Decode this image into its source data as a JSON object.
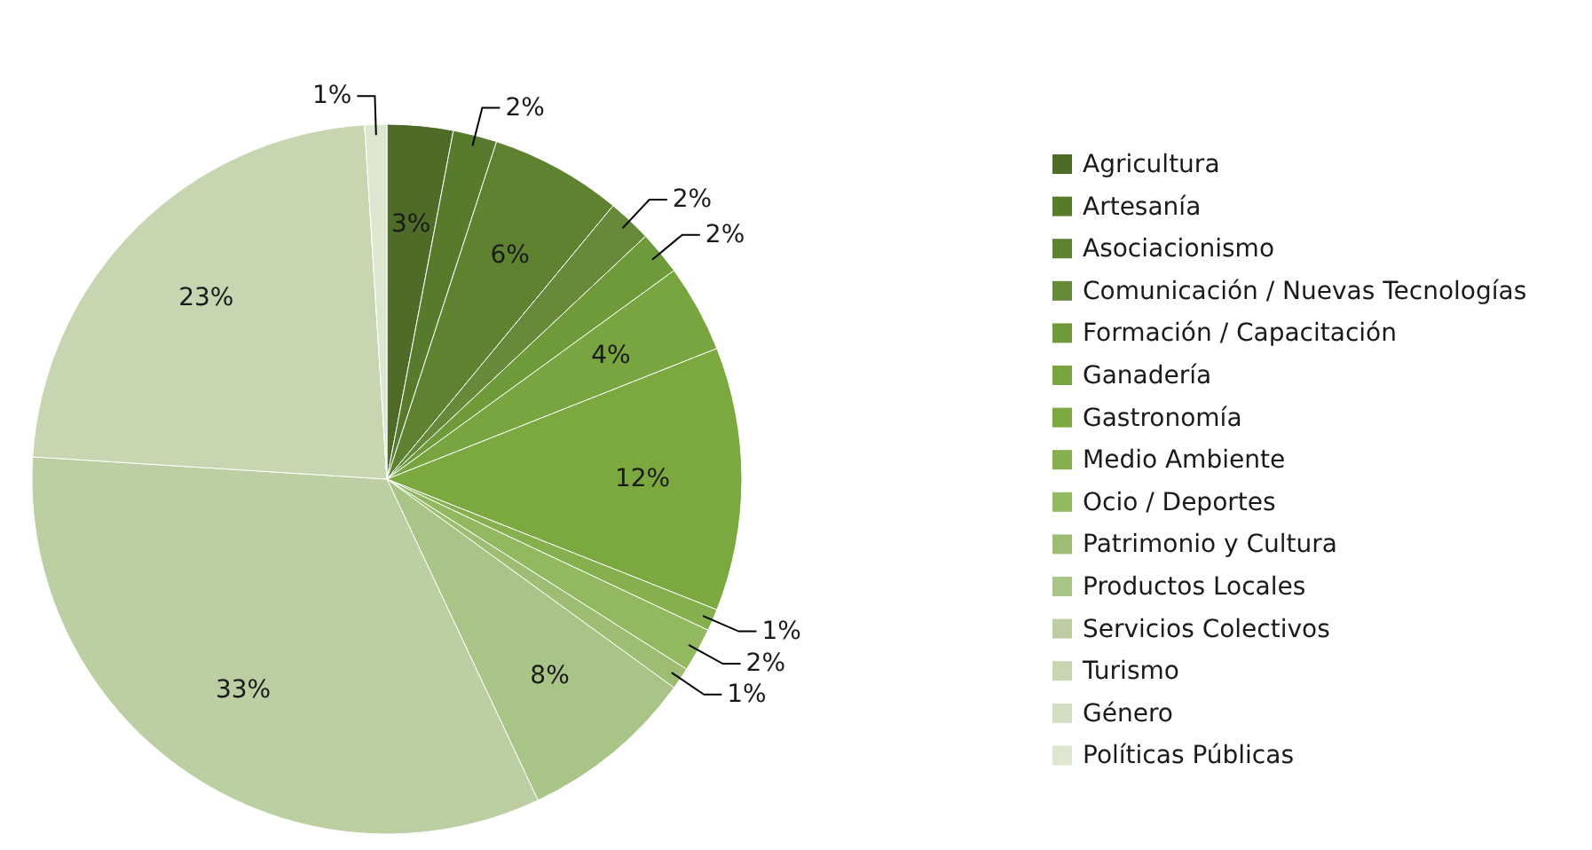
{
  "chart_data": {
    "type": "pie",
    "categories": [
      "Agricultura",
      "Artesanía",
      "Asociacionismo",
      "Comunicación / Nuevas Tecnologías",
      "Formación / Capacitación",
      "Ganadería",
      "Gastronomía",
      "Medio Ambiente",
      "Ocio / Deportes",
      "Patrimonio y Cultura",
      "Productos Locales",
      "Servicios Colectivos",
      "Turismo",
      "Género",
      "Políticas Públicas"
    ],
    "values": [
      3,
      2,
      6,
      2,
      2,
      4,
      12,
      1,
      2,
      1,
      8,
      33,
      23,
      0,
      1
    ],
    "value_labels": [
      "3%",
      "2%",
      "6%",
      "2%",
      "2%",
      "4%",
      "12%",
      "1%",
      "2%",
      "1%",
      "8%",
      "33%",
      "23%",
      null,
      "1%"
    ],
    "colors": [
      "#4f6b28",
      "#587a2c",
      "#5e8230",
      "#66893a",
      "#6f9a3a",
      "#78a53f",
      "#7ba83f",
      "#86b04d",
      "#92b860",
      "#9dbd72",
      "#a9c487",
      "#bccfa2",
      "#c6d6b1",
      "#d2dfc2",
      "#dde7d0"
    ],
    "legend": "right"
  }
}
